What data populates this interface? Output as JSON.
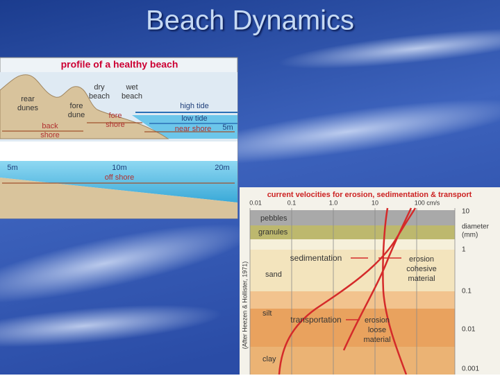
{
  "title": "Beach Dynamics",
  "profile": {
    "title": "profile of a healthy beach",
    "labels": {
      "rear_dunes": [
        "rear",
        "dunes"
      ],
      "fore_dune": [
        "fore",
        "dune"
      ],
      "dry_beach": [
        "dry",
        "beach"
      ],
      "wet_beach": [
        "wet",
        "beach"
      ],
      "back_shore": [
        "back",
        "shore"
      ],
      "fore_shore": [
        "fore",
        "shore"
      ],
      "high_tide": "high tide",
      "low_tide": "low tide",
      "near_shore": "near shore",
      "depth_near": "5m",
      "depth_start": "5m",
      "depth_mid": "10m",
      "off_shore": "off shore",
      "depth_far": "20m"
    }
  },
  "velocity_diagram": {
    "title": "current velocities for erosion, sedimentation & transport",
    "velocity_ticks": [
      "0.01",
      "0.1",
      "1.0",
      "10",
      "100 cm/s"
    ],
    "diameter_ticks": [
      "10",
      "1",
      "0.1",
      "0.01",
      "0.001"
    ],
    "diameter_label": [
      "diameter",
      "(mm)"
    ],
    "source": "(After Heezen & Hollister, 1971)",
    "grain_classes": [
      "pebbles",
      "granules",
      "sand",
      "silt",
      "clay"
    ],
    "regions": {
      "sedimentation": "sedimentation",
      "erosion_cohesive": [
        "erosion",
        "cohesive",
        "material"
      ],
      "transportation": "transportation",
      "erosion_loose": [
        "erosion",
        "loose",
        "material"
      ]
    }
  }
}
